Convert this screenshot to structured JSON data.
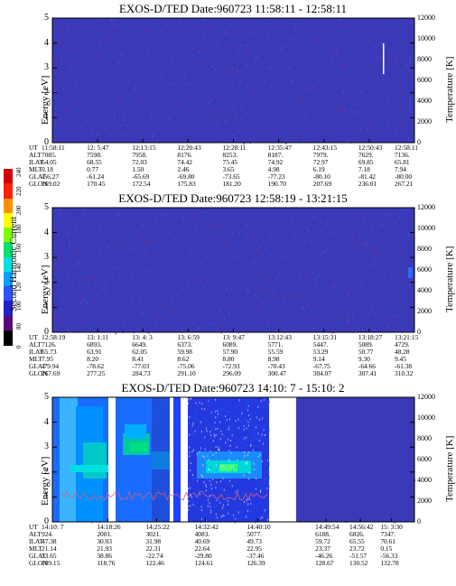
{
  "chart_data": [
    {
      "type": "heatmap",
      "title": "EXOS-D/TED   Date:960723   11:58:11 - 12:58:11",
      "ylabel": "Energy [eV]",
      "y2label": "Temperature [K]",
      "ylim": [
        0,
        5
      ],
      "y2lim": [
        0,
        12000
      ],
      "yticks": [
        "0",
        "1",
        "2",
        "3",
        "4",
        "5"
      ],
      "y2ticks": [
        "0",
        "2000",
        "4000",
        "6000",
        "8000",
        "10000",
        "12000"
      ],
      "rows": {
        "UT": [
          "11:58:11",
          "12: 5:47",
          "12:13:15",
          "12:20:43",
          "12:28:11",
          "12:35:47",
          "12:43:15",
          "12:50:43",
          "12:58:11"
        ],
        "ALT": [
          "7085.",
          "7598.",
          "7958.",
          "8176.",
          "8253.",
          "8187.",
          "7979.",
          "7629.",
          "7136."
        ],
        "ILAT": [
          "64.05",
          "68.55",
          "72.03",
          "74.42",
          "75.45",
          "74.92",
          "72.97",
          "69.85",
          "65.81"
        ],
        "MLT": [
          "0.18",
          "0.77",
          "1.50",
          "2.46",
          "3.65",
          "4.98",
          "6.19",
          "7.18",
          "7.94"
        ],
        "GLAT": [
          "-56.27",
          "-61.24",
          "-65.69",
          "-69.80",
          "-73.65",
          "-77.23",
          "-80.10",
          "-81.42",
          "-80.00"
        ],
        "GLON": [
          "169.02",
          "170.45",
          "172.54",
          "175.83",
          "181.20",
          "190.70",
          "207.69",
          "236.01",
          "267.21"
        ]
      }
    },
    {
      "type": "heatmap",
      "title": "EXOS-D/TED   Date:960723   12:58:19 - 13:21:15",
      "ylabel": "Energy [eV]",
      "y2label": "Temperature [K]",
      "ylim": [
        0,
        5
      ],
      "y2lim": [
        0,
        12000
      ],
      "yticks": [
        "0",
        "1",
        "2",
        "3",
        "4",
        "5"
      ],
      "y2ticks": [
        "0",
        "2000",
        "4000",
        "6000",
        "8000",
        "10000",
        "12000"
      ],
      "rows": {
        "UT": [
          "12:58:19",
          "13: 1:11",
          "13: 4: 3",
          "13: 6:59",
          "13: 9:47",
          "13:12:43",
          "13:15:31",
          "13:18:27",
          "13:21:15"
        ],
        "ALT": [
          "7126.",
          "6893.",
          "6649.",
          "6373.",
          "6089.",
          "5771.",
          "5447.",
          "5089.",
          "4729."
        ],
        "ILAT": [
          "65.73",
          "63.91",
          "62.05",
          "59.98",
          "57.90",
          "55.59",
          "53.29",
          "50.77",
          "48.28"
        ],
        "MLT": [
          "7.95",
          "8.20",
          "8.41",
          "8.62",
          "8.80",
          "8.98",
          "9.14",
          "9.30",
          "9.45"
        ],
        "GLAT": [
          "-79.94",
          "-78.62",
          "-77.03",
          "-75.06",
          "-72.93",
          "-70.43",
          "-67.75",
          "-64.66",
          "-61.38"
        ],
        "GLON": [
          "267.69",
          "277.25",
          "284.73",
          "291.10",
          "296.09",
          "300.47",
          "304.07",
          "307.41",
          "310.32"
        ]
      }
    },
    {
      "type": "heatmap",
      "title": "EXOS-D/TED   Date:960723   14:10: 7 - 15:10: 2",
      "ylabel": "Energy [eV]",
      "y2label": "Temperature [K]",
      "ylim": [
        0,
        5
      ],
      "y2lim": [
        0,
        12000
      ],
      "yticks": [
        "0",
        "1",
        "2",
        "3",
        "4",
        "5"
      ],
      "y2ticks": [
        "0",
        "2000",
        "4000",
        "6000",
        "8000",
        "10000",
        "12000"
      ],
      "rows": {
        "UT": [
          "14:10: 7",
          "14:18:26",
          "14:25:22",
          "14:32:42",
          "14:40:10",
          "14:49:54",
          "14:56:42",
          "15: 3:30"
        ],
        "ALT": [
          "924.",
          "2001.",
          "3021.",
          "4083.",
          "5077.",
          "6188.",
          "6826.",
          "7347."
        ],
        "ILAT": [
          "47.38",
          "30.03",
          "31.98",
          "40.69",
          "49.73",
          "59.72",
          "65.55",
          "70.61"
        ],
        "MLT": [
          "21.14",
          "21.93",
          "22.31",
          "22.64",
          "22.95",
          "23.37",
          "23.72",
          "0.15"
        ],
        "GLAT": [
          "53.65",
          "38.86",
          "-22.74",
          "-29.80",
          "-37.46",
          "-46.26",
          "-51.57",
          "-56.33"
        ],
        "GLON": [
          "109.15",
          "118.76",
          "122.46",
          "124.61",
          "126.39",
          "128.67",
          "130.52",
          "132.78"
        ]
      }
    }
  ],
  "row_labels": [
    "UT",
    "ALT",
    "ILAT",
    "MLT",
    "GLAT",
    "GLON"
  ],
  "colorbar": {
    "label": "Second Harmonic Current",
    "ticks": [
      "0",
      "80",
      "100",
      "120",
      "140",
      "160",
      "180",
      "200",
      "220",
      "240"
    ],
    "colors": [
      "#000000",
      "#5a0a78",
      "#2020c8",
      "#2e52ff",
      "#00a0ff",
      "#00e0e0",
      "#00e070",
      "#80ff00",
      "#ffff00",
      "#ff9000",
      "#ff2000",
      "#d00000"
    ]
  }
}
